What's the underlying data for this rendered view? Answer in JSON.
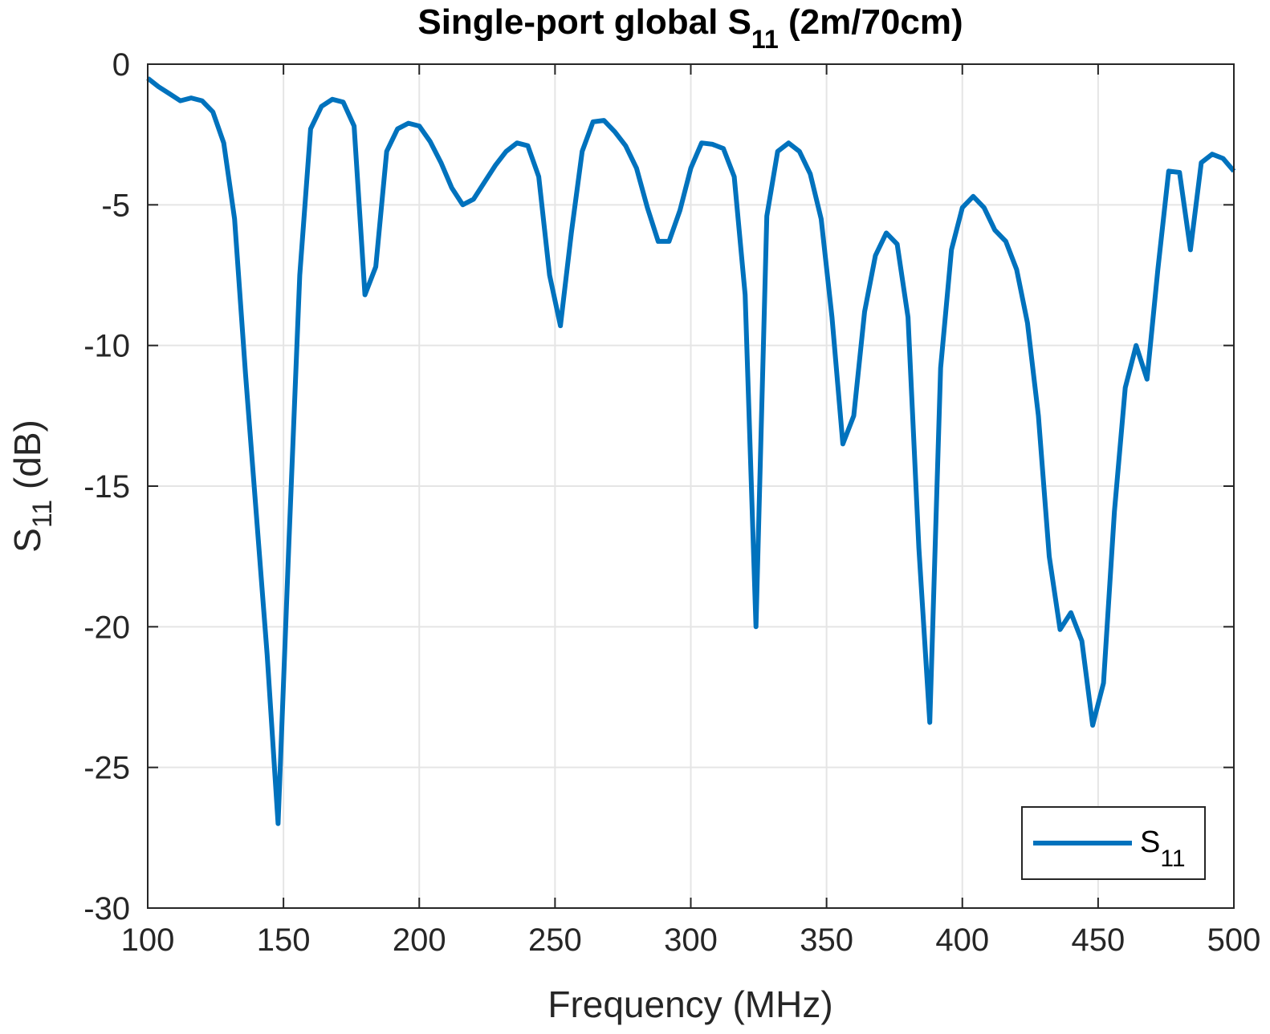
{
  "chart_data": {
    "type": "line",
    "title": {
      "main": "Single-port global S",
      "sub": "11",
      "suffix": " (2m/70cm)"
    },
    "xlabel": "Frequency (MHz)",
    "ylabel": {
      "main": "S",
      "sub": "11",
      "suffix": " (dB)"
    },
    "xlim": [
      100,
      500
    ],
    "ylim": [
      -30,
      0
    ],
    "xticks": [
      100,
      150,
      200,
      250,
      300,
      350,
      400,
      450,
      500
    ],
    "yticks": [
      0,
      -5,
      -10,
      -15,
      -20,
      -25,
      -30
    ],
    "xtick_labels": [
      "100",
      "150",
      "200",
      "250",
      "300",
      "350",
      "400",
      "450",
      "500"
    ],
    "ytick_labels": [
      "0",
      "-5",
      "-10",
      "-15",
      "-20",
      "-25",
      "-30"
    ],
    "grid": true,
    "legend": {
      "position": "bottom-right",
      "entries": [
        {
          "main": "S",
          "sub": "11"
        }
      ]
    },
    "colors": {
      "series": "#0072BD",
      "grid": "#e5e5e5",
      "axis": "#262626"
    },
    "series": [
      {
        "x": [
          100,
          104,
          108,
          112,
          116,
          120,
          124,
          128,
          132,
          136,
          140,
          144,
          148,
          152,
          156,
          160,
          164,
          168,
          172,
          176,
          180,
          184,
          188,
          192,
          196,
          200,
          204,
          208,
          212,
          216,
          220,
          224,
          228,
          232,
          236,
          240,
          244,
          248,
          252,
          256,
          260,
          264,
          268,
          272,
          276,
          280,
          284,
          288,
          292,
          296,
          300,
          304,
          308,
          312,
          316,
          320,
          324,
          328,
          332,
          336,
          340,
          344,
          348,
          352,
          356,
          360,
          364,
          368,
          372,
          376,
          380,
          384,
          388,
          392,
          396,
          400,
          404,
          408,
          412,
          416,
          420,
          424,
          428,
          432,
          436,
          440,
          444,
          448,
          452,
          456,
          460,
          464,
          468,
          472,
          476,
          480,
          484,
          488,
          492,
          496,
          500
        ],
        "y": [
          -0.5,
          -0.8,
          -1.05,
          -1.3,
          -1.2,
          -1.3,
          -1.7,
          -2.8,
          -5.5,
          -11,
          -16,
          -21,
          -27,
          -17,
          -7.5,
          -2.3,
          -1.5,
          -1.25,
          -1.35,
          -2.2,
          -8.2,
          -7.2,
          -3.1,
          -2.3,
          -2.1,
          -2.2,
          -2.75,
          -3.5,
          -4.4,
          -5,
          -4.8,
          -4.2,
          -3.6,
          -3.1,
          -2.8,
          -2.9,
          -4,
          -7.5,
          -9.3,
          -6,
          -3.1,
          -2.05,
          -2,
          -2.4,
          -2.9,
          -3.7,
          -5.1,
          -6.3,
          -6.3,
          -5.2,
          -3.7,
          -2.8,
          -2.85,
          -3.0,
          -4.0,
          -8.2,
          -20,
          -5.4,
          -3.1,
          -2.8,
          -3.1,
          -3.9,
          -5.5,
          -9,
          -13.5,
          -12.5,
          -8.8,
          -6.8,
          -6,
          -6.4,
          -9,
          -17.2,
          -23.4,
          -10.8,
          -6.6,
          -5.1,
          -4.7,
          -5.1,
          -5.9,
          -6.3,
          -7.3,
          -9.2,
          -12.5,
          -17.5,
          -20.1,
          -19.5,
          -20.5,
          -23.5,
          -22,
          -15.9,
          -11.5,
          -10,
          -11.2,
          -7.3,
          -3.8,
          -3.85,
          -6.6,
          -3.5,
          -3.2,
          -3.35,
          -3.8
        ]
      }
    ]
  }
}
